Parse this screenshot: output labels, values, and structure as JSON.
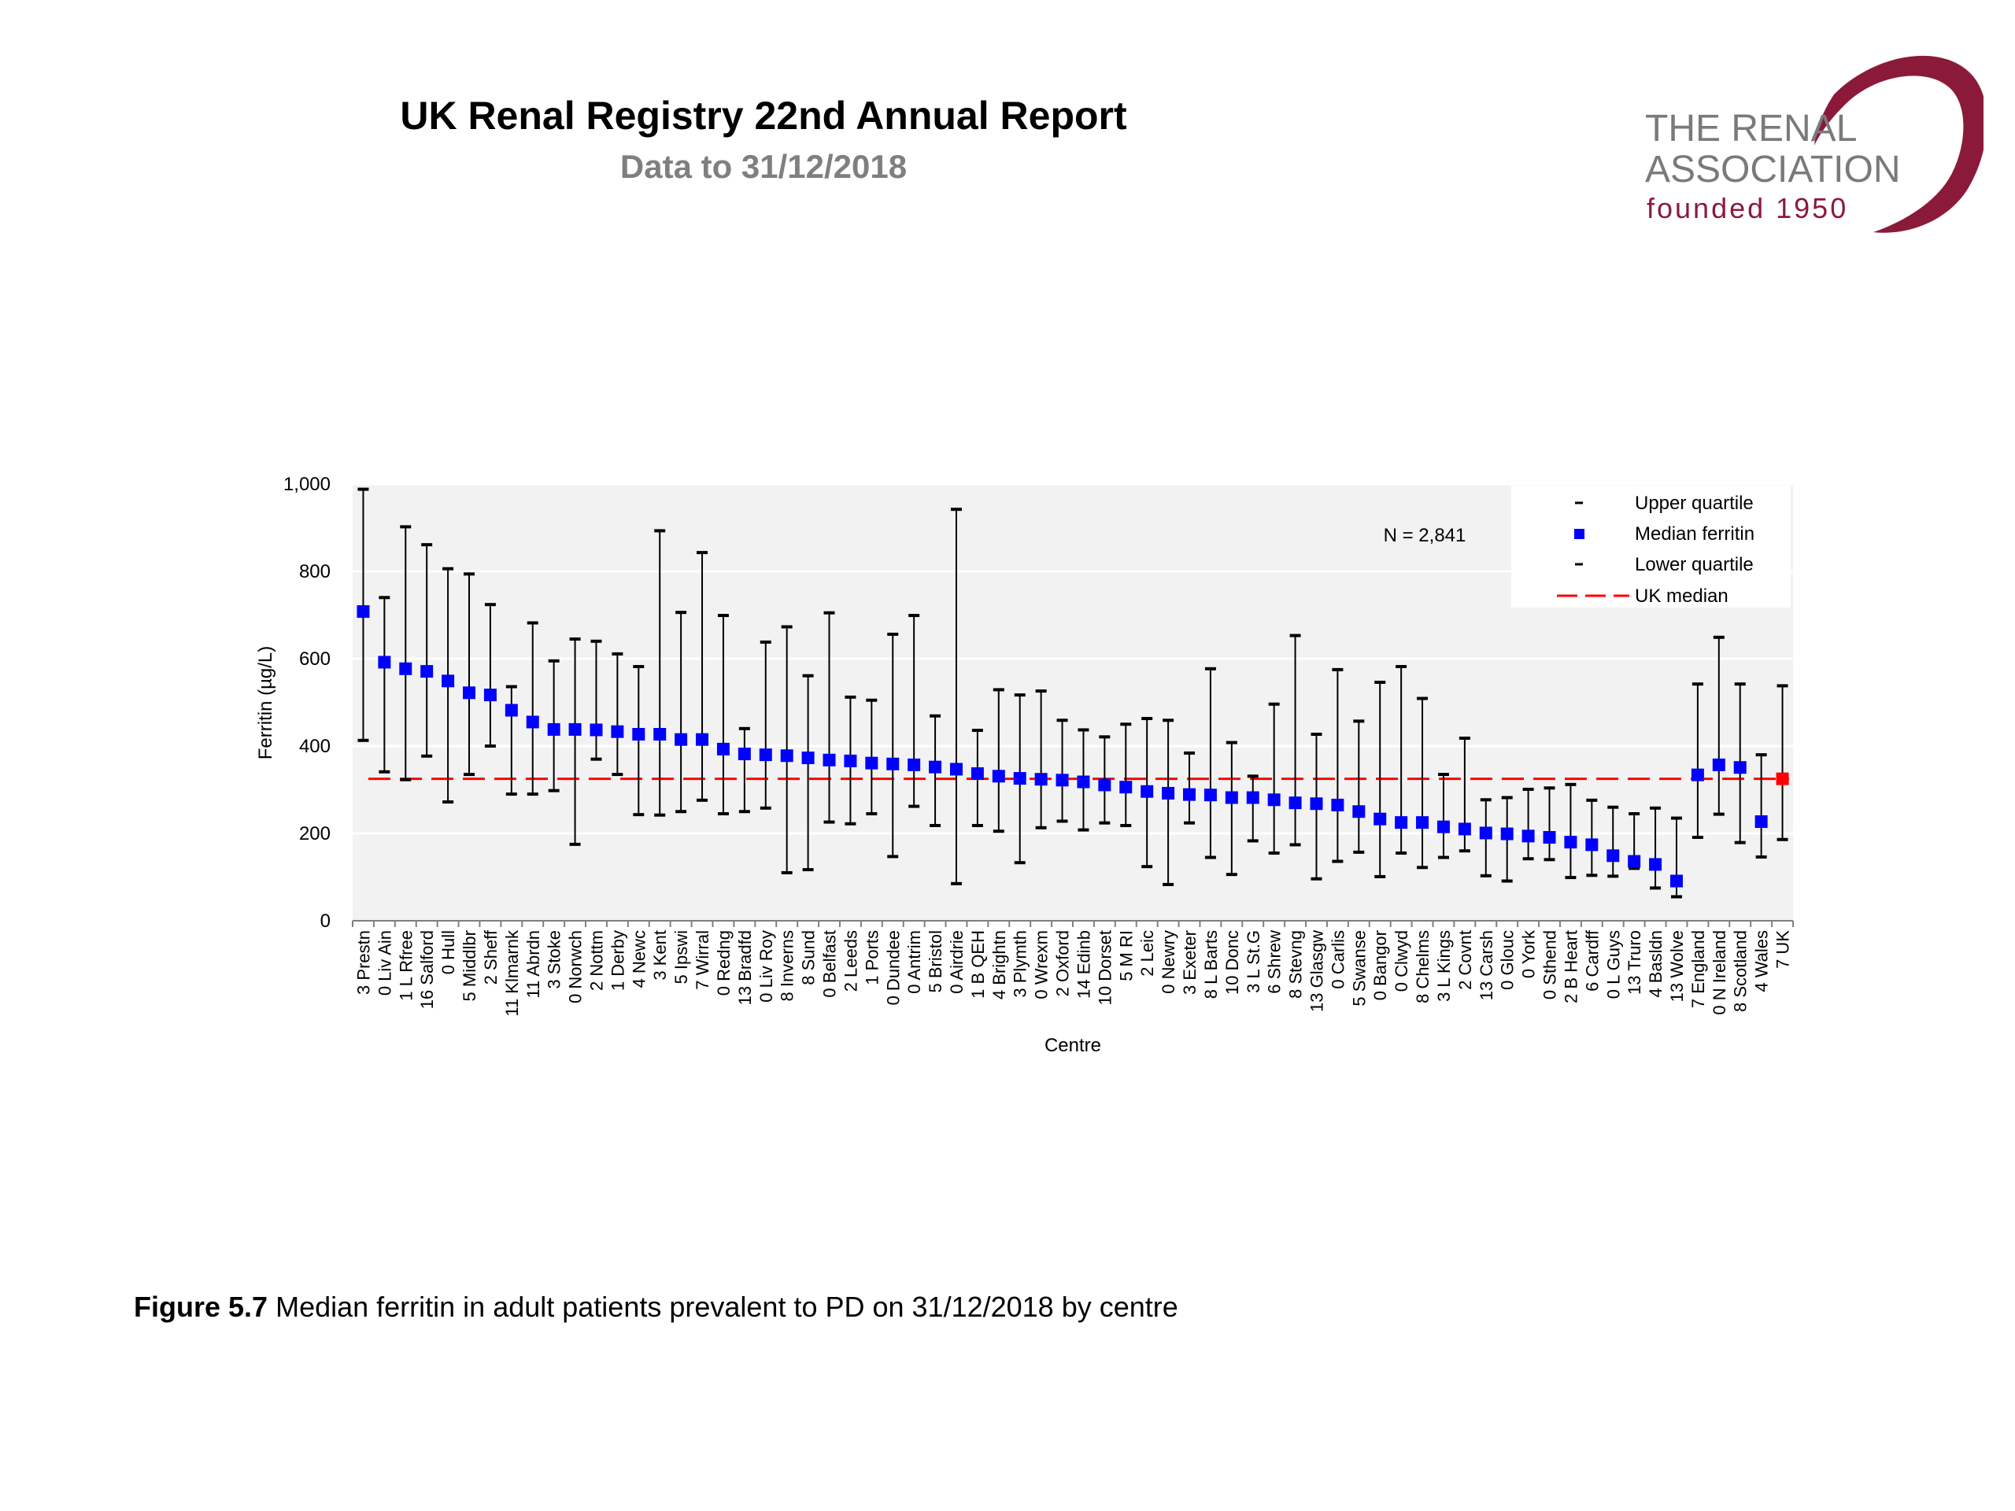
{
  "header": {
    "title": "UK Renal Registry 22nd Annual Report",
    "subtitle": "Data to 31/12/2018"
  },
  "logo": {
    "line1": "THE RENAL",
    "line2": "ASSOCIATION",
    "line3": "founded 1950",
    "color": "#8b1a3a"
  },
  "caption": {
    "label": "Figure 5.7",
    "text": "Median ferritin in adult patients prevalent to PD on 31/12/2018 by centre"
  },
  "chart_data": {
    "type": "scatter",
    "xlabel": "Centre",
    "ylabel": "Ferritin (µg/L)",
    "ylim": [
      0,
      1000
    ],
    "yticks": [
      0,
      200,
      400,
      600,
      800,
      1000
    ],
    "ytick_labels": [
      "0",
      "200",
      "400",
      "600",
      "800",
      "1,000"
    ],
    "annotation": "N = 2,841",
    "uk_median": 325,
    "grid": true,
    "legend_position": "top-right",
    "legend": [
      {
        "label": "Upper quartile",
        "marker": "dash"
      },
      {
        "label": "Median ferritin",
        "marker": "square"
      },
      {
        "label": "Lower quartile",
        "marker": "dash"
      },
      {
        "label": "UK median",
        "marker": "dashed-line"
      }
    ],
    "colors": {
      "median": "#0000ff",
      "uk_point": "#ff0000",
      "uk_line": "#ff0000",
      "whisker": "#000000",
      "plot_bg": "#f2f2f2"
    },
    "categories": [
      "3 Prestn",
      "0 Liv Ain",
      "1 L Rfree",
      "16 Salford",
      "0 Hull",
      "5 Middlbr",
      "2 Sheff",
      "11 Klmarnk",
      "11 Abrdn",
      "3 Stoke",
      "0 Norwch",
      "2 Nottm",
      "1 Derby",
      "4 Newc",
      "3 Kent",
      "5 Ipswi",
      "7 Wirral",
      "0 Redng",
      "13 Bradfd",
      "0 Liv Roy",
      "8 Inverns",
      "8 Sund",
      "0 Belfast",
      "2 Leeds",
      "1 Ports",
      "0 Dundee",
      "0 Antrim",
      "5 Bristol",
      "0 Airdrie",
      "1 B QEH",
      "4 Brightn",
      "3 Plymth",
      "0 Wrexm",
      "2 Oxford",
      "14 Edinb",
      "10 Dorset",
      "5 M RI",
      "2 Leic",
      "0 Newry",
      "3 Exeter",
      "8 L Barts",
      "10 Donc",
      "3 L St.G",
      "6 Shrew",
      "8 Stevng",
      "13 Glasgw",
      "0 Carlis",
      "5 Swanse",
      "0 Bangor",
      "0 Clwyd",
      "8 Chelms",
      "3 L Kings",
      "2 Covnt",
      "13 Carsh",
      "0 Glouc",
      "0 York",
      "0 Sthend",
      "2 B Heart",
      "6 Cardff",
      "0 L Guys",
      "13 Truro",
      "4 Basldn",
      "13 Wolve",
      "7 England",
      "0 N Ireland",
      "8 Scotland",
      "4 Wales",
      "7 UK"
    ],
    "median": [
      708,
      592,
      577,
      571,
      549,
      522,
      517,
      482,
      455,
      438,
      438,
      437,
      433,
      427,
      427,
      415,
      415,
      393,
      382,
      380,
      378,
      373,
      368,
      366,
      361,
      359,
      357,
      352,
      347,
      337,
      331,
      326,
      324,
      322,
      318,
      311,
      306,
      296,
      292,
      289,
      288,
      282,
      282,
      277,
      270,
      268,
      265,
      250,
      233,
      225,
      225,
      215,
      210,
      201,
      199,
      194,
      191,
      180,
      174,
      149,
      136,
      129,
      91,
      334,
      357,
      351,
      227,
      325
    ],
    "upper": [
      988,
      740,
      902,
      861,
      806,
      794,
      724,
      536,
      682,
      595,
      645,
      640,
      611,
      582,
      893,
      706,
      843,
      699,
      440,
      638,
      673,
      561,
      705,
      512,
      505,
      656,
      699,
      469,
      942,
      436,
      529,
      517,
      526,
      459,
      437,
      421,
      450,
      463,
      459,
      384,
      577,
      408,
      331,
      496,
      653,
      427,
      575,
      457,
      546,
      582,
      509,
      335,
      418,
      277,
      282,
      301,
      304,
      312,
      276,
      260,
      245,
      258,
      235,
      542,
      649,
      542,
      380,
      538
    ],
    "lower": [
      413,
      341,
      323,
      377,
      272,
      335,
      400,
      290,
      290,
      298,
      175,
      370,
      335,
      243,
      242,
      250,
      276,
      245,
      250,
      258,
      110,
      117,
      226,
      222,
      245,
      147,
      262,
      218,
      85,
      218,
      205,
      133,
      213,
      228,
      208,
      224,
      218,
      124,
      83,
      224,
      145,
      106,
      183,
      155,
      174,
      96,
      136,
      157,
      101,
      155,
      122,
      145,
      160,
      103,
      91,
      142,
      140,
      99,
      104,
      102,
      120,
      75,
      55,
      191,
      244,
      179,
      146,
      186
    ]
  }
}
